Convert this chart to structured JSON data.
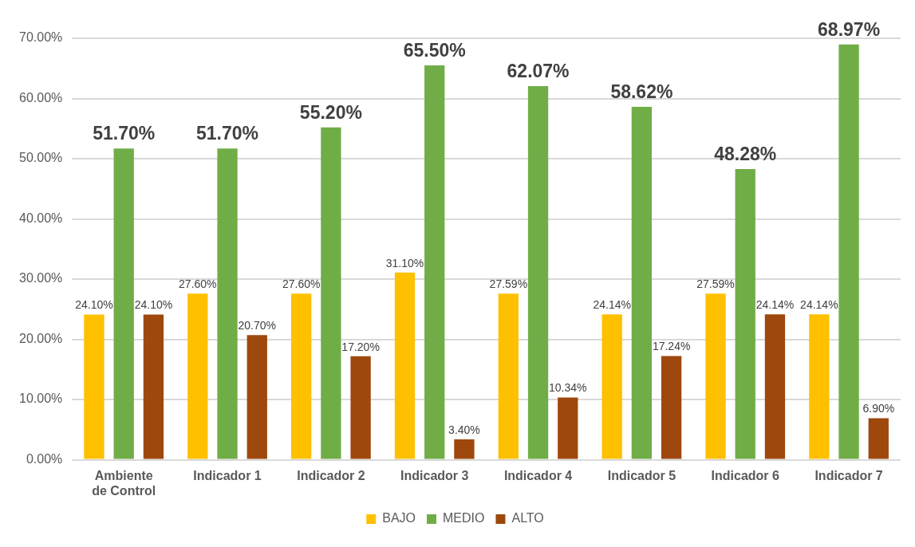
{
  "chart_data": {
    "type": "bar",
    "categories": [
      "Ambiente de Control",
      "Indicador 1",
      "Indicador 2",
      "Indicador 3",
      "Indicador 4",
      "Indicador 5",
      "Indicador 6",
      "Indicador 7"
    ],
    "series": [
      {
        "name": "BAJO",
        "color": "#ffc000",
        "values": [
          24.1,
          27.6,
          27.6,
          31.1,
          27.59,
          24.14,
          27.59,
          24.14
        ],
        "value_labels": [
          "24.10%",
          "27.60%",
          "27.60%",
          "31.10%",
          "27.59%",
          "24.14%",
          "27.59%",
          "24.14%"
        ]
      },
      {
        "name": "MEDIO",
        "color": "#70ad47",
        "values": [
          51.7,
          51.7,
          55.2,
          65.5,
          62.07,
          58.62,
          48.28,
          68.97
        ],
        "value_labels": [
          "51.70%",
          "51.70%",
          "55.20%",
          "65.50%",
          "62.07%",
          "58.62%",
          "48.28%",
          "68.97%"
        ]
      },
      {
        "name": "ALTO",
        "color": "#9e480e",
        "values": [
          24.1,
          20.7,
          17.2,
          3.4,
          10.34,
          17.24,
          24.14,
          6.9
        ],
        "value_labels": [
          "24.10%",
          "20.70%",
          "17.20%",
          "3.40%",
          "10.34%",
          "17.24%",
          "24.14%",
          "6.90%"
        ]
      }
    ],
    "ylim": [
      0,
      70
    ],
    "yticks": [
      {
        "value": 0,
        "label": "0.00%"
      },
      {
        "value": 10,
        "label": "10.00%"
      },
      {
        "value": 20,
        "label": "20.00%"
      },
      {
        "value": 30,
        "label": "30.00%"
      },
      {
        "value": 40,
        "label": "40.00%"
      },
      {
        "value": 50,
        "label": "50.00%"
      },
      {
        "value": 60,
        "label": "60.00%"
      },
      {
        "value": 70,
        "label": "70.00%"
      }
    ],
    "grid": "y",
    "legend": "bottom"
  }
}
